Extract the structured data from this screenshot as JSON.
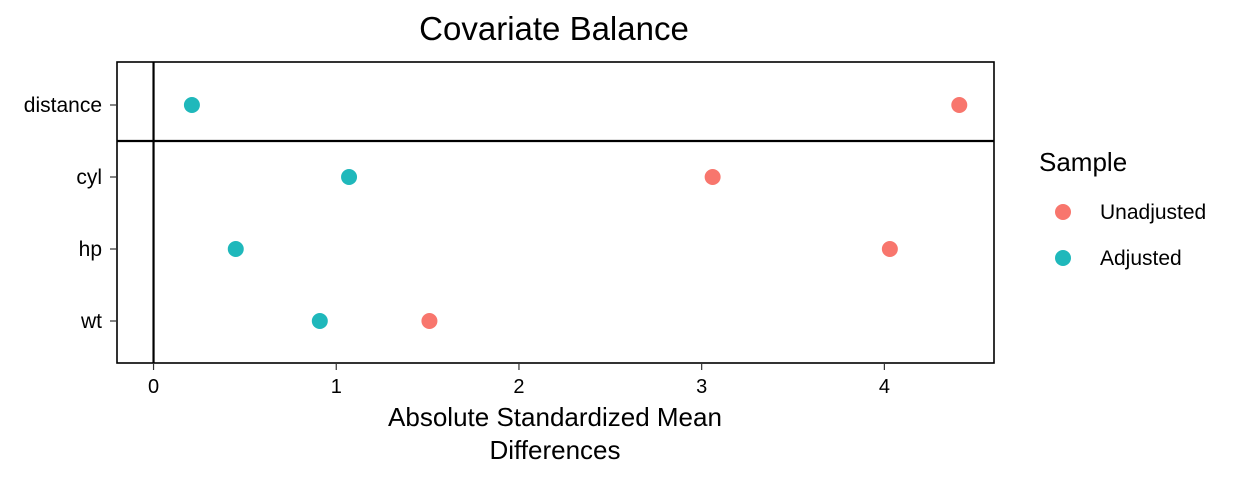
{
  "chart_data": {
    "type": "scatter",
    "title": "Covariate Balance",
    "xlabel_lines": [
      "Absolute Standardized Mean",
      "Differences"
    ],
    "ylabel": "",
    "categories": [
      "distance",
      "cyl",
      "hp",
      "wt"
    ],
    "xlim": [
      -0.2,
      4.6
    ],
    "xticks": [
      0,
      1,
      2,
      3,
      4
    ],
    "grid": false,
    "reference_line_x": 0,
    "legend": {
      "title": "Sample",
      "position": "right"
    },
    "series": [
      {
        "name": "Unadjusted",
        "color": "#f8766d",
        "values": [
          4.41,
          3.06,
          4.03,
          1.51
        ]
      },
      {
        "name": "Adjusted",
        "color": "#1fb8bb",
        "values": [
          0.21,
          1.07,
          0.45,
          0.91
        ]
      }
    ]
  }
}
